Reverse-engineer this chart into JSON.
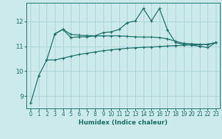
{
  "xlabel": "Humidex (Indice chaleur)",
  "bg_color": "#cce9ec",
  "grid_color": "#aad4d8",
  "line_color": "#1a6e68",
  "xlim": [
    -0.5,
    23.5
  ],
  "ylim": [
    8.5,
    12.75
  ],
  "yticks": [
    9,
    10,
    11,
    12
  ],
  "xticks": [
    0,
    1,
    2,
    3,
    4,
    5,
    6,
    7,
    8,
    9,
    10,
    11,
    12,
    13,
    14,
    15,
    16,
    17,
    18,
    19,
    20,
    21,
    22,
    23
  ],
  "line1_x": [
    0,
    1,
    2,
    3,
    4,
    5,
    6,
    7,
    8,
    9,
    10,
    11,
    12,
    13,
    14,
    15,
    16,
    17,
    18,
    19,
    20,
    21,
    22,
    23
  ],
  "line1_y": [
    8.72,
    9.82,
    10.45,
    11.5,
    11.68,
    11.35,
    11.38,
    11.38,
    11.42,
    11.55,
    11.58,
    11.68,
    11.95,
    12.02,
    12.52,
    12.02,
    12.52,
    11.65,
    11.15,
    11.08,
    11.05,
    11.0,
    10.95,
    11.15
  ],
  "line2_x": [
    3,
    4,
    5,
    6,
    7,
    8,
    9,
    10,
    11,
    12,
    13,
    14,
    15,
    16,
    17,
    18,
    19,
    20,
    21,
    22,
    23
  ],
  "line2_y": [
    11.5,
    11.68,
    11.48,
    11.45,
    11.43,
    11.42,
    11.42,
    11.42,
    11.42,
    11.4,
    11.38,
    11.37,
    11.37,
    11.35,
    11.3,
    11.2,
    11.12,
    11.1,
    11.08,
    11.08,
    11.15
  ],
  "line3_x": [
    2,
    3,
    4,
    5,
    6,
    7,
    8,
    9,
    10,
    11,
    12,
    13,
    14,
    15,
    16,
    17,
    18,
    19,
    20,
    21,
    22,
    23
  ],
  "line3_y": [
    10.45,
    10.45,
    10.52,
    10.6,
    10.67,
    10.72,
    10.77,
    10.82,
    10.86,
    10.89,
    10.92,
    10.94,
    10.96,
    10.97,
    10.99,
    11.01,
    11.03,
    11.04,
    11.06,
    11.07,
    11.08,
    11.15
  ]
}
